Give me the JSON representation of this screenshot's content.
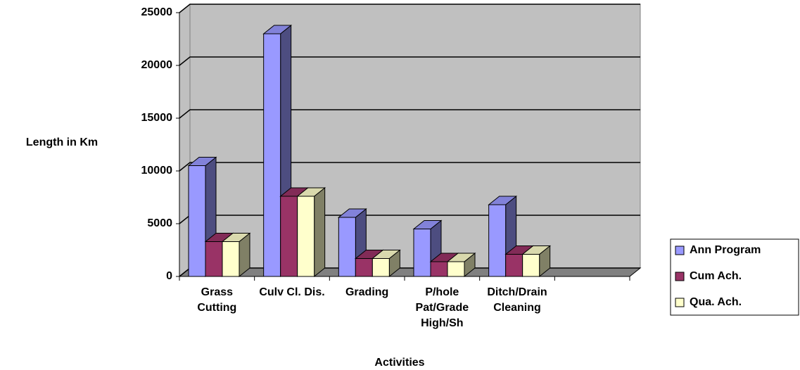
{
  "chart_data": {
    "type": "bar3d",
    "categories": [
      "Grass Cutting",
      "Culv Cl. Dis.",
      "Grading",
      "P/hole Pat/Grade High/Sh",
      "Ditch/Drain Cleaning"
    ],
    "series": [
      {
        "name": "Ann Program",
        "color": "#9999ff",
        "values": [
          10500,
          23000,
          5600,
          4500,
          6800
        ]
      },
      {
        "name": "Cum Ach.",
        "color": "#993366",
        "values": [
          3300,
          7600,
          1700,
          1400,
          2100
        ]
      },
      {
        "name": "Qua. Ach.",
        "color": "#ffffcc",
        "values": [
          3300,
          7600,
          1700,
          1400,
          2100
        ]
      }
    ],
    "ylim": [
      0,
      25000
    ],
    "yticks": [
      0,
      5000,
      10000,
      15000,
      20000,
      25000
    ],
    "grid": true,
    "y_label": "Length in Km",
    "x_label": "Activities",
    "legend": "right"
  }
}
